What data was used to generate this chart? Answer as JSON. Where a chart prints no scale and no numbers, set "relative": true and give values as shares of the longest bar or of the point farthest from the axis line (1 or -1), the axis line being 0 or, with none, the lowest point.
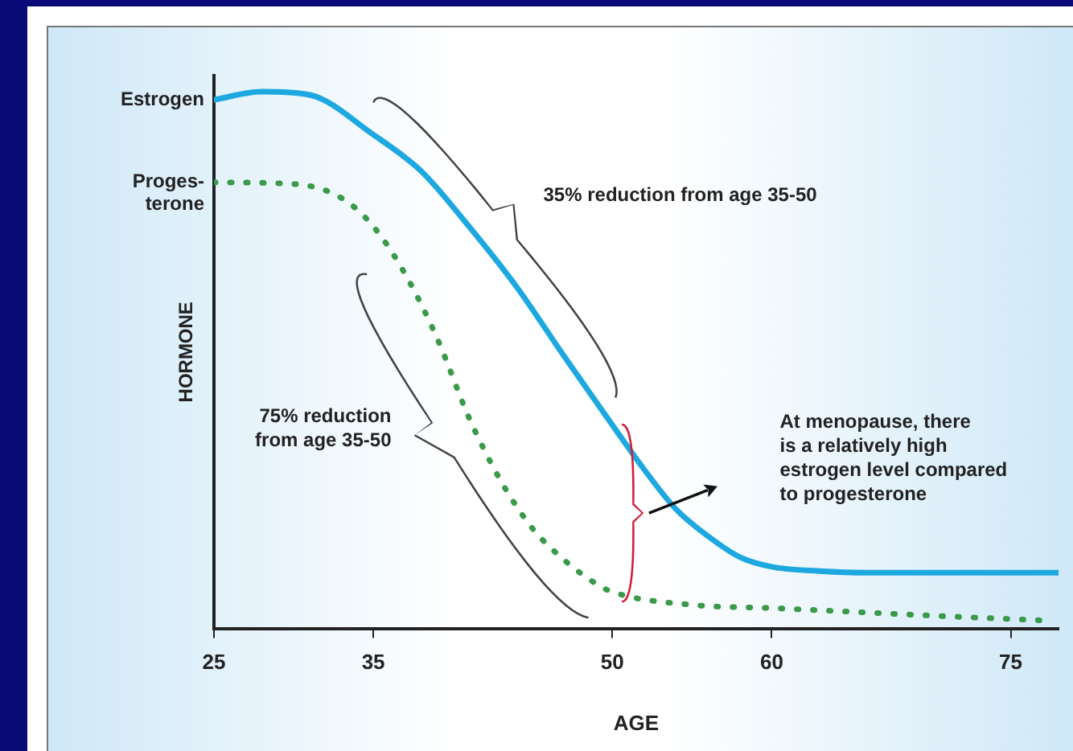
{
  "chart_data": {
    "type": "line",
    "relative": true,
    "xlabel": "AGE",
    "ylabel": "HORMONE",
    "xlim": [
      25,
      78
    ],
    "xticks": [
      25,
      35,
      50,
      60,
      75
    ],
    "grid": false,
    "legend": false,
    "marker": "none",
    "series": [
      {
        "name": "Estrogen",
        "color": "#1ea8e0",
        "line_style": "solid",
        "x": [
          25,
          28,
          31,
          35,
          38,
          41,
          44,
          47,
          50,
          52,
          54,
          56,
          58,
          60,
          63,
          66,
          70,
          75,
          78
        ],
        "values": [
          0.985,
          1,
          0.994,
          0.92,
          0.852,
          0.749,
          0.636,
          0.506,
          0.379,
          0.296,
          0.222,
          0.172,
          0.133,
          0.115,
          0.107,
          0.104,
          0.104,
          0.104,
          0.104
        ]
      },
      {
        "name": "Proges-\nterone",
        "color": "#3a9a4a",
        "line_style": "dotted",
        "x": [
          25,
          30,
          33,
          35,
          37,
          39,
          41,
          43,
          45,
          47,
          49,
          50,
          55,
          60,
          70,
          77
        ],
        "values": [
          0.831,
          0.828,
          0.802,
          0.749,
          0.66,
          0.541,
          0.393,
          0.275,
          0.186,
          0.127,
          0.083,
          0.068,
          0.044,
          0.038,
          0.024,
          0.015
        ]
      }
    ],
    "annotations": [
      "35% reduction from age 35-50",
      "75% reduction\nfrom age 35-50",
      "At menopause, there\nis a relatively high\nestrogen level compared\nto progesterone"
    ]
  }
}
